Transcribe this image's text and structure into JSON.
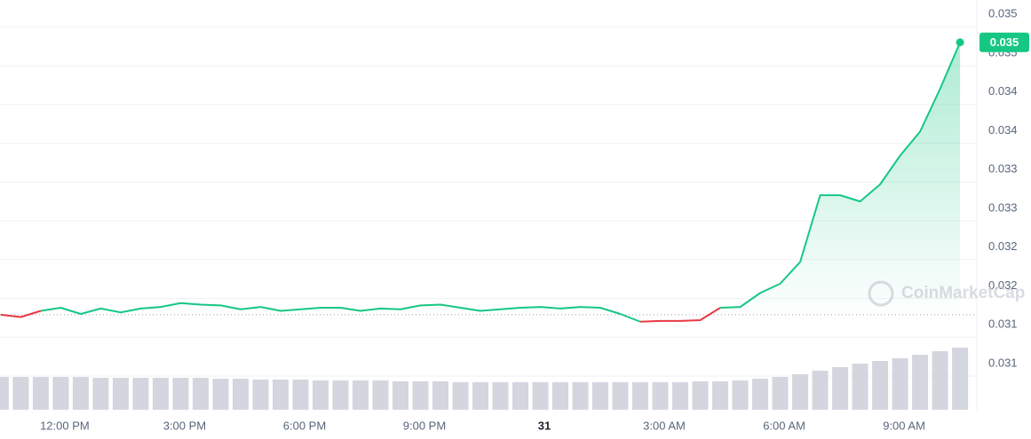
{
  "chart_data": {
    "type": "line",
    "watermark": "CoinMarketCap",
    "x": [
      10.4,
      10.9,
      11.4,
      11.9,
      12.4,
      12.9,
      13.4,
      13.9,
      14.4,
      14.9,
      15.4,
      15.9,
      16.4,
      16.9,
      17.4,
      17.9,
      18.4,
      18.9,
      19.4,
      19.9,
      20.4,
      20.9,
      21.4,
      21.9,
      22.4,
      22.9,
      23.4,
      23.9,
      24.4,
      24.9,
      25.4,
      25.9,
      26.4,
      26.9,
      27.4,
      27.9,
      28.4,
      28.9,
      29.4,
      29.9,
      30.4,
      30.9,
      31.4,
      31.9,
      32.4,
      32.9,
      33.4,
      33.9,
      34.4
    ],
    "series": [
      {
        "color": "#16c784",
        "down_color": "#ea3943",
        "values": [
          0.03139,
          0.03136,
          0.03144,
          0.03148,
          0.0314,
          0.03147,
          0.03142,
          0.03147,
          0.03149,
          0.03154,
          0.03152,
          0.03151,
          0.03146,
          0.03149,
          0.03144,
          0.03146,
          0.03148,
          0.03148,
          0.03144,
          0.03147,
          0.03146,
          0.03151,
          0.03152,
          0.03148,
          0.03144,
          0.03146,
          0.03148,
          0.03149,
          0.03147,
          0.03149,
          0.03148,
          0.0314,
          0.0313,
          0.03131,
          0.03131,
          0.03132,
          0.03148,
          0.03149,
          0.03167,
          0.03179,
          0.03207,
          0.03293,
          0.03293,
          0.03285,
          0.03307,
          0.03344,
          0.03375,
          0.0343,
          0.0349
        ]
      }
    ],
    "volume": {
      "color": "#d3d6de",
      "values": [
        37,
        37,
        37,
        37,
        37,
        36,
        36,
        36,
        36,
        36,
        36,
        35,
        35,
        34,
        34,
        34,
        33,
        33,
        33,
        33,
        32,
        32,
        32,
        31,
        31,
        31,
        31,
        31,
        31,
        31,
        31,
        31,
        31,
        31,
        31,
        32,
        32,
        33,
        35,
        37,
        40,
        44,
        48,
        52,
        55,
        58,
        62,
        66,
        70
      ]
    },
    "current_price": {
      "value": 0.0349,
      "label": "0.035"
    },
    "xlim": [
      10.38,
      34.82
    ],
    "xticks": [
      {
        "value": 12,
        "label": "12:00 PM"
      },
      {
        "value": 15,
        "label": "3:00 PM"
      },
      {
        "value": 18,
        "label": "6:00 PM"
      },
      {
        "value": 21,
        "label": "9:00 PM"
      },
      {
        "value": 24,
        "label": "31"
      },
      {
        "value": 27,
        "label": "3:00 AM"
      },
      {
        "value": 30,
        "label": "6:00 AM"
      },
      {
        "value": 33,
        "label": "9:00 AM"
      }
    ],
    "ylim": [
      0.0302,
      0.0354
    ],
    "yticks": [
      {
        "value": 0.0306,
        "label": "0.031"
      },
      {
        "value": 0.0311,
        "label": "0.031"
      },
      {
        "value": 0.0316,
        "label": "0.032"
      },
      {
        "value": 0.0321,
        "label": "0.032"
      },
      {
        "value": 0.0326,
        "label": "0.033"
      },
      {
        "value": 0.0331,
        "label": "0.033"
      },
      {
        "value": 0.0336,
        "label": "0.034"
      },
      {
        "value": 0.0341,
        "label": "0.034"
      },
      {
        "value": 0.0346,
        "label": "0.035"
      },
      {
        "value": 0.0351,
        "label": "0.035"
      }
    ],
    "grid": true
  }
}
